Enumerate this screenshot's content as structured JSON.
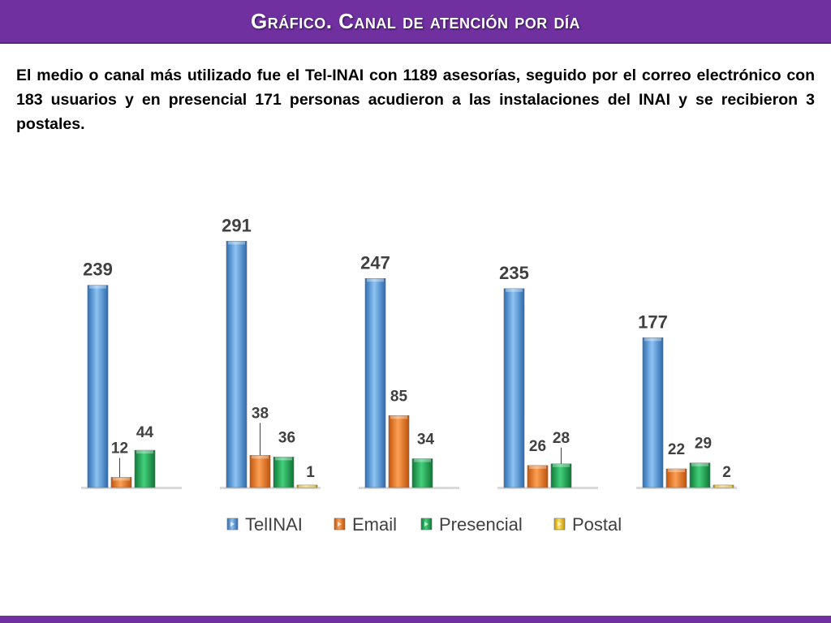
{
  "header": {
    "title": "Gráfico. Canal de atención por día"
  },
  "summary": {
    "text": "El medio o canal más utilizado fue el Tel-INAI con 1189 asesorías, seguido por el correo electrónico con 183 usuarios y en  presencial 171 personas acudieron a las instalaciones del INAI y se recibieron 3 postales."
  },
  "colors": {
    "brand": "#7030a0",
    "telinai": "#4a90d9",
    "email": "#e8741e",
    "presencial": "#1fa354",
    "postal": "#f2c200"
  },
  "chart_data": {
    "type": "bar",
    "title": "",
    "xlabel": "",
    "ylabel": "",
    "categories": [
      "",
      "",
      "",
      "",
      ""
    ],
    "ylim": [
      0,
      300
    ],
    "grid": false,
    "legend_position": "bottom",
    "series": [
      {
        "name": "TelINAI",
        "color": "#4a90d9",
        "values": [
          239,
          291,
          247,
          235,
          177
        ]
      },
      {
        "name": "Email",
        "color": "#e8741e",
        "values": [
          12,
          38,
          85,
          26,
          22
        ]
      },
      {
        "name": "Presencial",
        "color": "#1fa354",
        "values": [
          44,
          36,
          34,
          28,
          29
        ]
      },
      {
        "name": "Postal",
        "color": "#f2c200",
        "values": [
          null,
          1,
          null,
          null,
          2
        ]
      }
    ]
  }
}
